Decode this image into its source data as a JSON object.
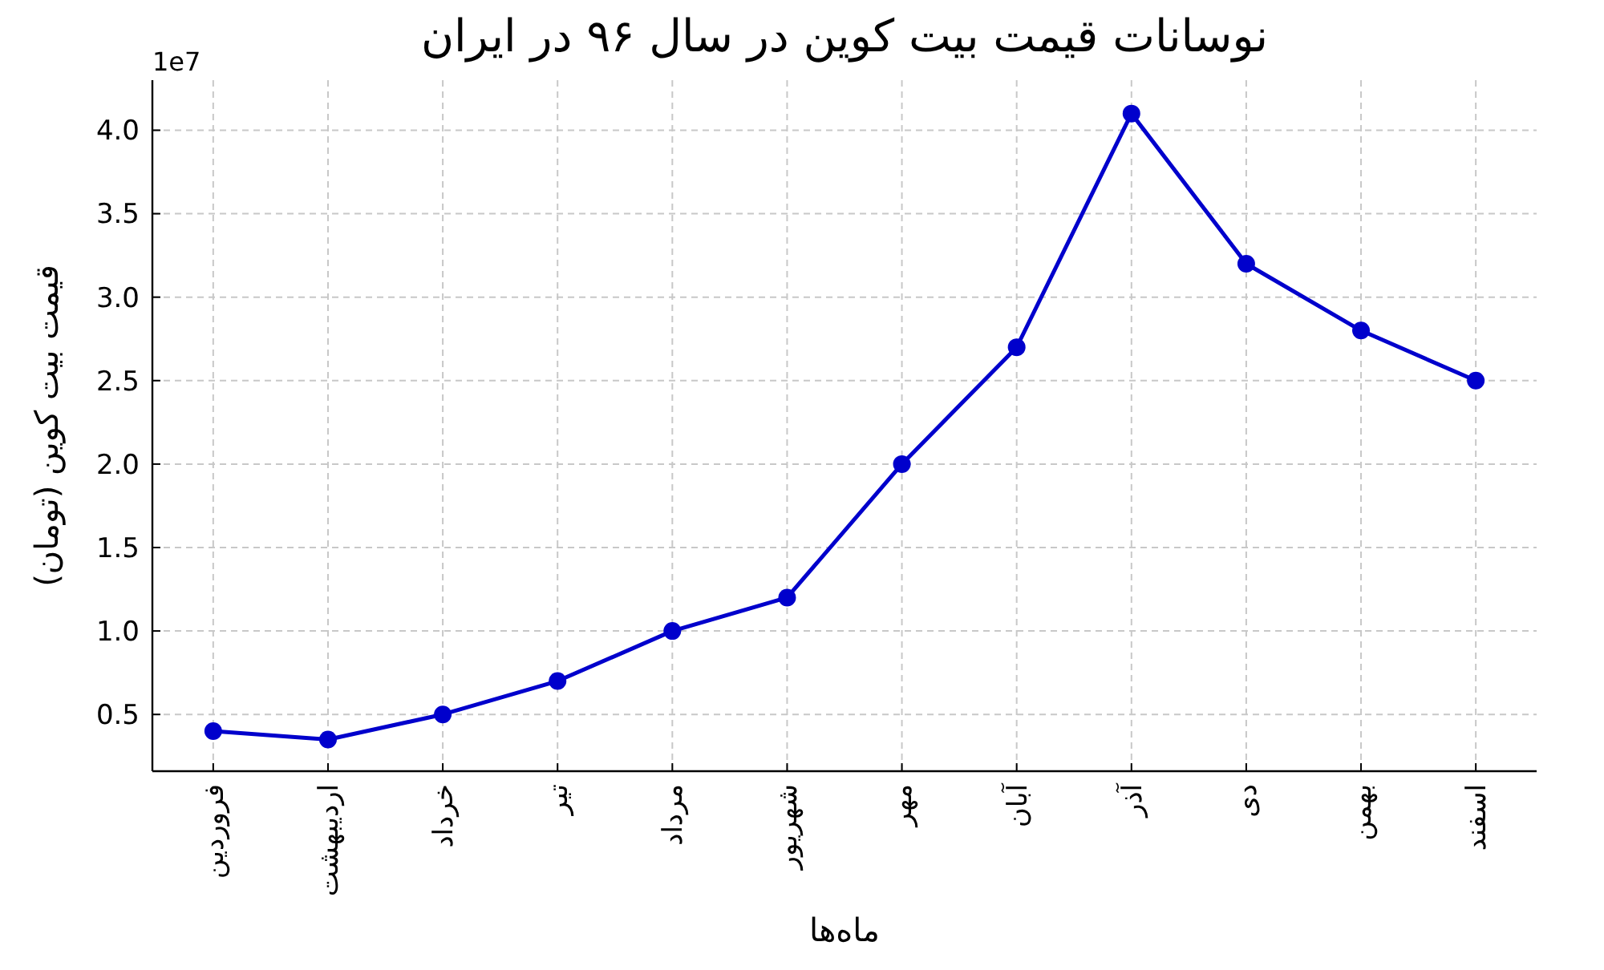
{
  "chart_data": {
    "type": "line",
    "title": "نوسانات قیمت بیت کوین در سال ۹۶ در ایران",
    "xlabel": "ماه‌ها",
    "ylabel": "قیمت بیت کوین (تومان)",
    "annotations": [
      "1e7"
    ],
    "categories": [
      "فروردین",
      "اردیبهشت",
      "خرداد",
      "تیر",
      "مرداد",
      "شهریور",
      "مهر",
      "آبان",
      "آذر",
      "دی",
      "بهمن",
      "اسفند"
    ],
    "series": [
      {
        "color": "#0000cc",
        "values": [
          0.4,
          0.35,
          0.5,
          0.7,
          1.0,
          1.2,
          2.0,
          2.7,
          4.1,
          3.2,
          2.8,
          2.5
        ]
      }
    ],
    "ylim": [
      0.16,
      4.3
    ],
    "yticks": [
      0.5,
      {
        "value": 1,
        "label": "1.0"
      },
      1.5,
      {
        "value": 2,
        "label": "2.0"
      },
      2.5,
      {
        "value": 3,
        "label": "3.0"
      },
      3.5,
      {
        "value": 4,
        "label": "4.0"
      }
    ],
    "grid": true,
    "marker": "circle",
    "line_style": "solid"
  }
}
